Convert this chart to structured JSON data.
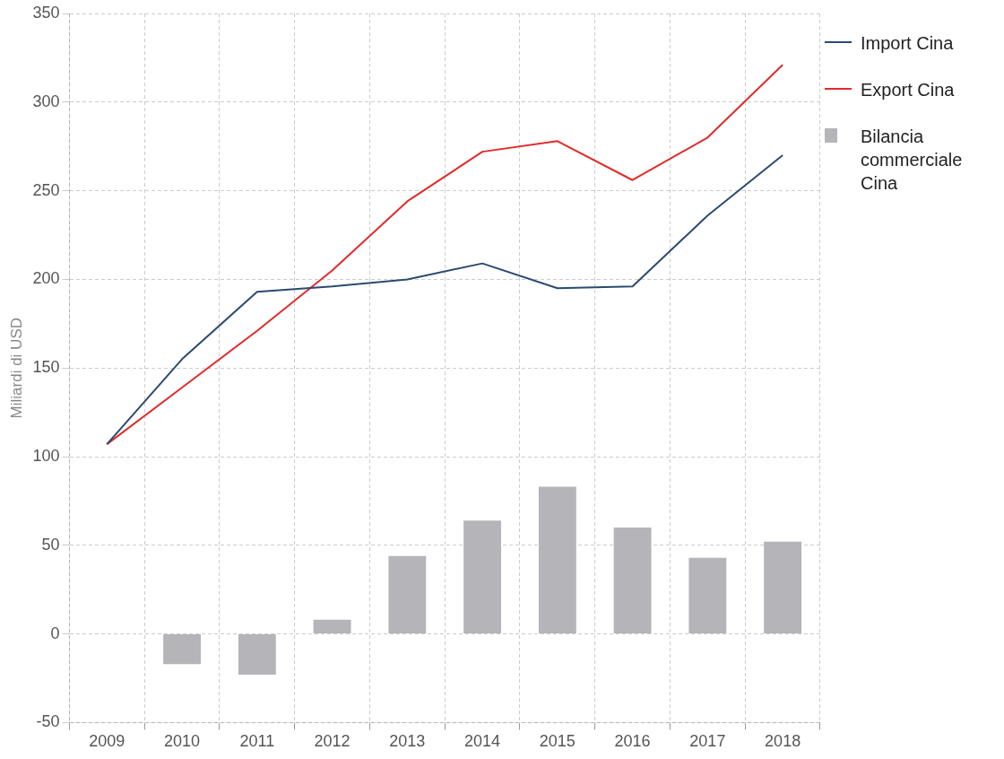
{
  "chart_data": {
    "type": "bar",
    "ylabel": "Miliardi di USD",
    "categories": [
      "2009",
      "2010",
      "2011",
      "2012",
      "2013",
      "2014",
      "2015",
      "2016",
      "2017",
      "2018"
    ],
    "series": [
      {
        "name": "Import Cina",
        "type": "line",
        "color": "#2b4a6f",
        "values": [
          107,
          155,
          193,
          196,
          200,
          209,
          195,
          196,
          236,
          270
        ]
      },
      {
        "name": "Export Cina",
        "type": "line",
        "color": "#e02b2b",
        "values": [
          107,
          139,
          171,
          205,
          244,
          272,
          278,
          256,
          280,
          321
        ]
      },
      {
        "name": "Bilancia commerciale Cina",
        "color": "#b4b4b9",
        "values": [
          0,
          -17,
          -23,
          8,
          44,
          64,
          83,
          60,
          43,
          52
        ]
      }
    ],
    "ylim": [
      -50,
      350
    ],
    "yticks": [
      -50,
      0,
      50,
      100,
      150,
      200,
      250,
      300,
      350
    ],
    "grid": true,
    "legend": "top right",
    "marker": "none",
    "line_style": "solid"
  }
}
